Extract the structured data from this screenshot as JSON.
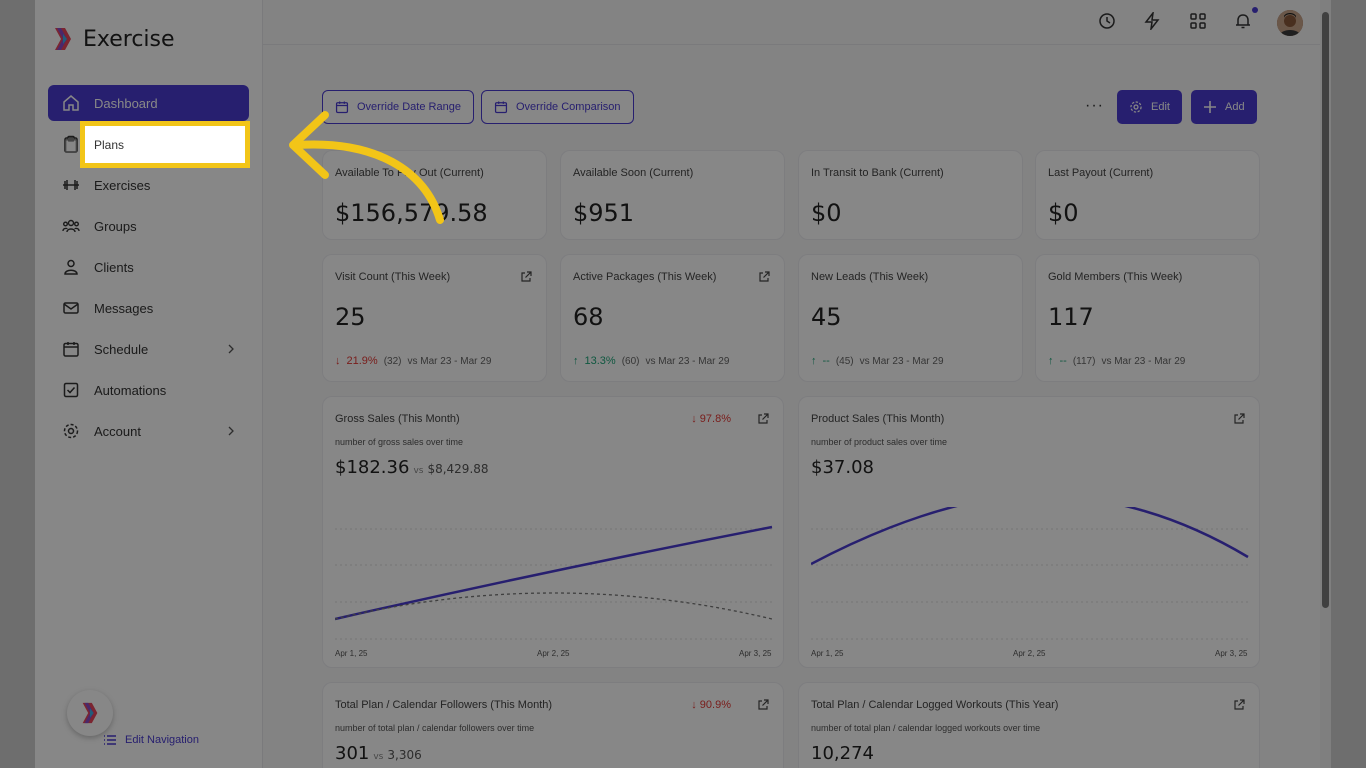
{
  "app": {
    "name": "Exercise"
  },
  "sidebar": {
    "items": [
      {
        "label": "Dashboard",
        "icon": "home-icon"
      },
      {
        "label": "Plans",
        "icon": "clipboard-icon"
      },
      {
        "label": "Exercises",
        "icon": "dumbbell-icon"
      },
      {
        "label": "Groups",
        "icon": "users-icon"
      },
      {
        "label": "Clients",
        "icon": "user-icon"
      },
      {
        "label": "Messages",
        "icon": "mail-icon"
      },
      {
        "label": "Schedule",
        "icon": "calendar-icon"
      },
      {
        "label": "Automations",
        "icon": "checkbox-icon"
      },
      {
        "label": "Account",
        "icon": "gear-icon"
      }
    ],
    "edit_navigation": "Edit Navigation"
  },
  "toolbar": {
    "override_date_range": "Override Date Range",
    "override_comparison": "Override Comparison",
    "edit": "Edit",
    "add": "Add",
    "more": "···"
  },
  "stats_row1": [
    {
      "title": "Available To Pay Out (Current)",
      "value": "$156,579.58"
    },
    {
      "title": "Available Soon (Current)",
      "value": "$951"
    },
    {
      "title": "In Transit to Bank (Current)",
      "value": "$0"
    },
    {
      "title": "Last Payout (Current)",
      "value": "$0"
    }
  ],
  "stats_row2": [
    {
      "title": "Visit Count (This Week)",
      "value": "25",
      "delta": "21.9%",
      "prev": "(32)",
      "range": "vs Mar 23 - Mar 29",
      "dir": "down"
    },
    {
      "title": "Active Packages (This Week)",
      "value": "68",
      "delta": "13.3%",
      "prev": "(60)",
      "range": "vs Mar 23 - Mar 29",
      "dir": "up"
    },
    {
      "title": "New Leads (This Week)",
      "value": "45",
      "delta": "--",
      "prev": "(45)",
      "range": "vs Mar 23 - Mar 29",
      "dir": "up"
    },
    {
      "title": "Gold Members (This Week)",
      "value": "117",
      "delta": "--",
      "prev": "(117)",
      "range": "vs Mar 23 - Mar 29",
      "dir": "up"
    }
  ],
  "charts": [
    {
      "title": "Gross Sales (This Month)",
      "subtitle": "number of gross sales over time",
      "value": "$182.36",
      "vs": "vs",
      "compare": "$8,429.88",
      "delta": "97.8%",
      "x_labels": [
        "Apr 1, 25",
        "Apr 2, 25",
        "Apr 3, 25"
      ]
    },
    {
      "title": "Product Sales (This Month)",
      "subtitle": "number of product sales over time",
      "value": "$37.08",
      "x_labels": [
        "Apr 1, 25",
        "Apr 2, 25",
        "Apr 3, 25"
      ]
    },
    {
      "title": "Total Plan / Calendar Followers (This Month)",
      "subtitle": "number of total plan / calendar followers over time",
      "value": "301",
      "vs": "vs",
      "compare": "3,306",
      "delta": "90.9%"
    },
    {
      "title": "Total Plan / Calendar Logged Workouts (This Year)",
      "subtitle": "number of total plan / calendar logged workouts over time",
      "value": "10,274"
    }
  ],
  "colors": {
    "accent": "#4a3bd1",
    "highlight": "#f2c518",
    "down": "#e53935",
    "up": "#1fa67a"
  }
}
